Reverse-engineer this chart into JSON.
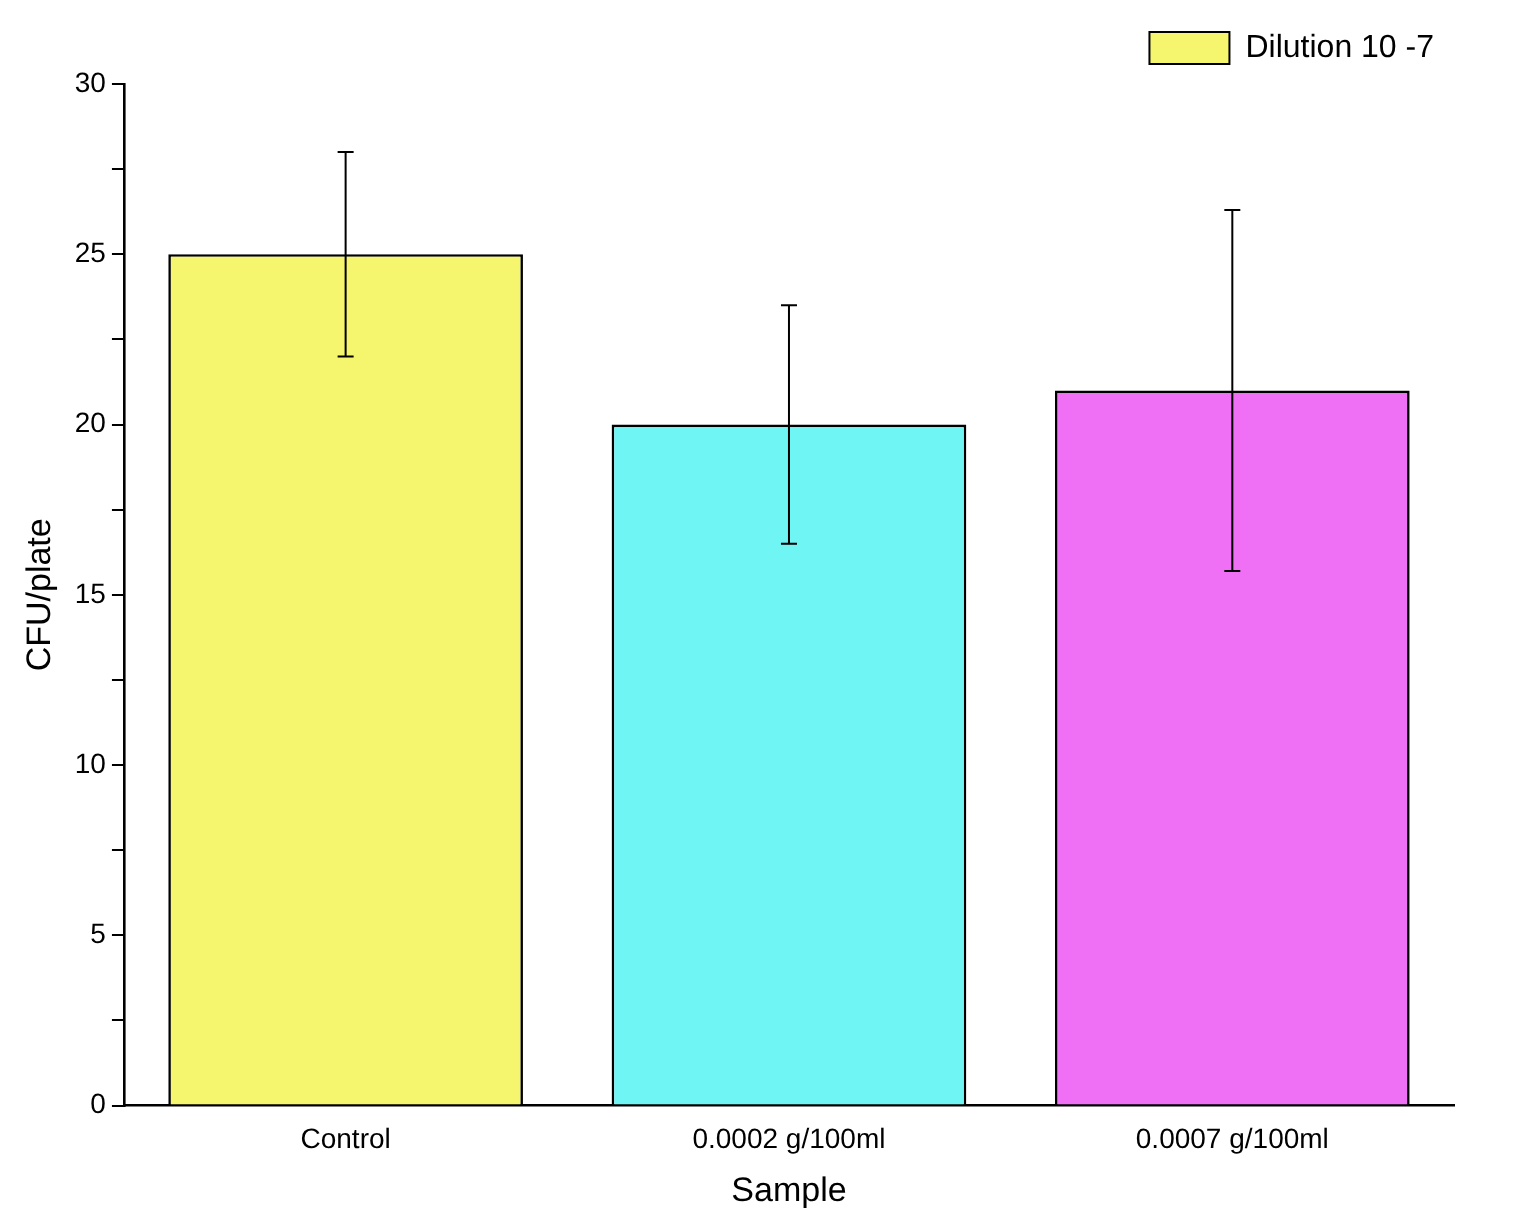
{
  "chart_data": {
    "type": "bar",
    "xlabel": "Sample",
    "ylabel": "CFU/plate",
    "categories": [
      "Control",
      "0.0002 g/100ml",
      "0.0007 g/100ml"
    ],
    "series": [
      {
        "name": "Dilution 10 -7",
        "colors": [
          "#f5f56e",
          "#70f5f5",
          "#f070f5"
        ],
        "values": [
          25,
          20,
          21
        ],
        "errors": [
          3,
          3.5,
          5.3
        ]
      }
    ],
    "ylim": [
      0,
      30
    ],
    "yticks": [
      0,
      {
        "value": 2.5,
        "label": null
      },
      5,
      {
        "value": 7.5,
        "label": null
      },
      10,
      {
        "value": 12.5,
        "label": null
      },
      15,
      {
        "value": 17.5,
        "label": null
      },
      20,
      {
        "value": 22.5,
        "label": null
      },
      25,
      {
        "value": 27.5,
        "label": null
      },
      30
    ],
    "grid": false,
    "legend": "top right"
  }
}
